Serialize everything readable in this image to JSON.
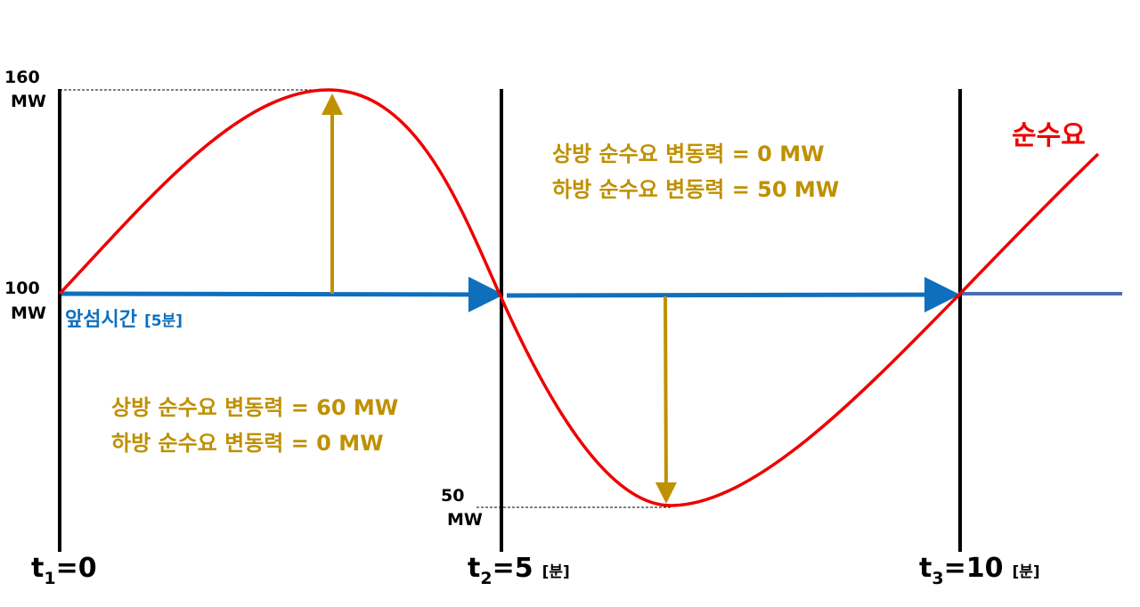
{
  "levels": [
    {
      "value": "160",
      "unit": "MW"
    },
    {
      "value": "100",
      "unit": "MW"
    },
    {
      "value": "50",
      "unit": "MW"
    }
  ],
  "lead_time": {
    "label": "앞섬시간",
    "unit": "[5분]"
  },
  "curve_label": "순수요",
  "notes": [
    {
      "up": "상방 순수요 변동력 = 60 MW",
      "down": "하방 순수요 변동력 =  0 MW"
    },
    {
      "up": "상방 순수요 변동력 =  0 MW",
      "down": "하방 순수요 변동력 = 50 MW"
    }
  ],
  "times": [
    {
      "var": "t",
      "sub": "1",
      "value": "=0"
    },
    {
      "var": "t",
      "sub": "2",
      "value": "=5",
      "unit": "[분]"
    },
    {
      "var": "t",
      "sub": "3",
      "value": "=10",
      "unit": "[분]"
    }
  ]
}
